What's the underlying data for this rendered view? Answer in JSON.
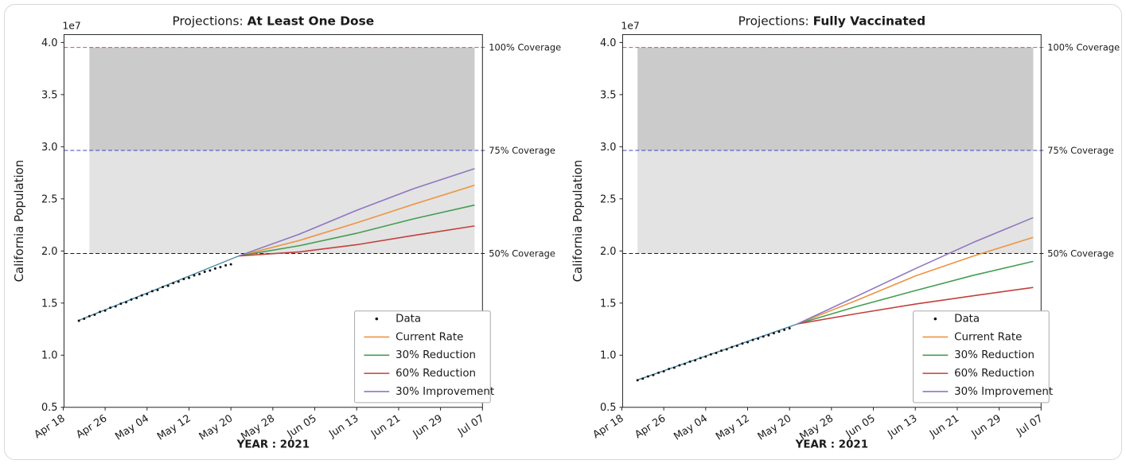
{
  "figure": {
    "description": "California vaccination projections, two-panel line chart"
  },
  "chart_data": [
    {
      "type": "line",
      "title_prefix": "Projections: ",
      "title_bold": "At Least One Dose",
      "ylabel": "California Population",
      "xlabel": "YEAR : 2021",
      "offset_label": "1e7",
      "x_tick_days": [
        0,
        8,
        16,
        24,
        32,
        40,
        48,
        56,
        64,
        72,
        80
      ],
      "x_tick_labels": [
        "Apr 18",
        "Apr 26",
        "May 04",
        "May 12",
        "May 20",
        "May 28",
        "Jun 05",
        "Jun 13",
        "Jun 21",
        "Jun 29",
        "Jul 07"
      ],
      "y_tick_labels": [
        "0.5",
        "1.0",
        "1.5",
        "2.0",
        "2.5",
        "3.0",
        "3.5",
        "4.0"
      ],
      "y_tick_values": [
        0.5,
        1.0,
        1.5,
        2.0,
        2.5,
        3.0,
        3.5,
        4.0
      ],
      "ylim": [
        0.5,
        4.076
      ],
      "xlim_days": [
        0,
        80
      ],
      "coverage_lines": [
        {
          "label": "100% Coverage",
          "value": 3.952,
          "color": "#e04b4b"
        },
        {
          "label": "75% Coverage",
          "value": 2.964,
          "color": "#4040c8"
        },
        {
          "label": "50%  Coverage",
          "value": 1.976,
          "color": "#1a1a1a"
        }
      ],
      "bands": [
        {
          "from": 2.964,
          "to": 3.952,
          "color": "#cbcbcb"
        },
        {
          "from": 1.976,
          "to": 2.964,
          "color": "#e3e3e3"
        }
      ],
      "band_day_range": [
        5.0,
        78.5
      ],
      "data_points": {
        "label": "Data",
        "color": "#111111",
        "start_day": 3,
        "step": 1,
        "values": [
          1.33,
          1.349,
          1.374,
          1.388,
          1.415,
          1.428,
          1.455,
          1.468,
          1.494,
          1.508,
          1.534,
          1.548,
          1.574,
          1.586,
          1.614,
          1.626,
          1.654,
          1.666,
          1.692,
          1.705,
          1.73,
          1.742,
          1.766,
          1.778,
          1.8,
          1.812,
          1.832,
          1.845,
          1.862,
          1.872
        ]
      },
      "fit_line": {
        "color": "#3d83a0",
        "points": [
          [
            3,
            1.335
          ],
          [
            18,
            1.637
          ],
          [
            33.5,
            1.952
          ]
        ]
      },
      "series": [
        {
          "name": "Current Rate",
          "color": "#ee9340",
          "points": [
            [
              33.5,
              1.952
            ],
            [
              45,
              2.1
            ],
            [
              56,
              2.27
            ],
            [
              67,
              2.45
            ],
            [
              78.5,
              2.63
            ]
          ]
        },
        {
          "name": "30% Reduction",
          "color": "#449e52",
          "points": [
            [
              33.5,
              1.952
            ],
            [
              45,
              2.05
            ],
            [
              56,
              2.17
            ],
            [
              67,
              2.31
            ],
            [
              78.5,
              2.44
            ]
          ]
        },
        {
          "name": "60% Reduction",
          "color": "#c4403c",
          "points": [
            [
              33.5,
              1.952
            ],
            [
              45,
              1.99
            ],
            [
              56,
              2.06
            ],
            [
              67,
              2.15
            ],
            [
              78.5,
              2.24
            ]
          ]
        },
        {
          "name": "30% Improvement",
          "color": "#8f76c0",
          "points": [
            [
              33.5,
              1.952
            ],
            [
              45,
              2.16
            ],
            [
              56,
              2.39
            ],
            [
              67,
              2.6
            ],
            [
              78.5,
              2.79
            ]
          ]
        }
      ],
      "legend": {
        "entries": [
          {
            "label": "Data",
            "type": "dot",
            "color": "#111111"
          },
          {
            "label": "Current Rate",
            "type": "line",
            "color": "#ee9340"
          },
          {
            "label": "30% Reduction",
            "type": "line",
            "color": "#449e52"
          },
          {
            "label": "60% Reduction",
            "type": "line",
            "color": "#c4403c"
          },
          {
            "label": "30% Improvement",
            "type": "line",
            "color": "#8f76c0"
          }
        ]
      }
    },
    {
      "type": "line",
      "title_prefix": "Projections: ",
      "title_bold": "Fully Vaccinated",
      "ylabel": "California Population",
      "xlabel": "YEAR : 2021",
      "offset_label": "1e7",
      "x_tick_days": [
        0,
        8,
        16,
        24,
        32,
        40,
        48,
        56,
        64,
        72,
        80
      ],
      "x_tick_labels": [
        "Apr 18",
        "Apr 26",
        "May 04",
        "May 12",
        "May 20",
        "May 28",
        "Jun 05",
        "Jun 13",
        "Jun 21",
        "Jun 29",
        "Jul 07"
      ],
      "y_tick_labels": [
        "0.5",
        "1.0",
        "1.5",
        "2.0",
        "2.5",
        "3.0",
        "3.5",
        "4.0"
      ],
      "y_tick_values": [
        0.5,
        1.0,
        1.5,
        2.0,
        2.5,
        3.0,
        3.5,
        4.0
      ],
      "ylim": [
        0.5,
        4.076
      ],
      "xlim_days": [
        0,
        80
      ],
      "coverage_lines": [
        {
          "label": "100% Coverage",
          "value": 3.952,
          "color": "#e04b4b"
        },
        {
          "label": "75% Coverage",
          "value": 2.964,
          "color": "#4040c8"
        },
        {
          "label": "50%  Coverage",
          "value": 1.976,
          "color": "#1a1a1a"
        }
      ],
      "bands": [
        {
          "from": 2.964,
          "to": 3.952,
          "color": "#cbcbcb"
        },
        {
          "from": 1.976,
          "to": 2.964,
          "color": "#e3e3e3"
        }
      ],
      "band_day_range": [
        3.0,
        78.5
      ],
      "data_points": {
        "label": "Data",
        "color": "#111111",
        "start_day": 3,
        "step": 1,
        "values": [
          0.76,
          0.775,
          0.796,
          0.81,
          0.832,
          0.845,
          0.868,
          0.88,
          0.903,
          0.916,
          0.938,
          0.951,
          0.973,
          0.986,
          1.008,
          1.021,
          1.043,
          1.056,
          1.078,
          1.09,
          1.112,
          1.124,
          1.146,
          1.158,
          1.179,
          1.191,
          1.211,
          1.226,
          1.243,
          1.258
        ]
      },
      "fit_line": {
        "color": "#3d83a0",
        "points": [
          [
            3,
            0.763
          ],
          [
            18,
            1.027
          ],
          [
            33.5,
            1.3
          ]
        ]
      },
      "series": [
        {
          "name": "Current Rate",
          "color": "#ee9340",
          "points": [
            [
              33.5,
              1.3
            ],
            [
              45,
              1.53
            ],
            [
              56,
              1.76
            ],
            [
              67,
              1.95
            ],
            [
              78.5,
              2.13
            ]
          ]
        },
        {
          "name": "30% Reduction",
          "color": "#449e52",
          "points": [
            [
              33.5,
              1.3
            ],
            [
              45,
              1.47
            ],
            [
              56,
              1.62
            ],
            [
              67,
              1.765
            ],
            [
              78.5,
              1.9
            ]
          ]
        },
        {
          "name": "60% Reduction",
          "color": "#c4403c",
          "points": [
            [
              33.5,
              1.3
            ],
            [
              45,
              1.4
            ],
            [
              56,
              1.49
            ],
            [
              67,
              1.57
            ],
            [
              78.5,
              1.65
            ]
          ]
        },
        {
          "name": "30% Improvement",
          "color": "#8f76c0",
          "points": [
            [
              33.5,
              1.3
            ],
            [
              45,
              1.57
            ],
            [
              56,
              1.83
            ],
            [
              67,
              2.08
            ],
            [
              78.5,
              2.32
            ]
          ]
        }
      ],
      "legend": {
        "entries": [
          {
            "label": "Data",
            "type": "dot",
            "color": "#111111"
          },
          {
            "label": "Current Rate",
            "type": "line",
            "color": "#ee9340"
          },
          {
            "label": "30% Reduction",
            "type": "line",
            "color": "#449e52"
          },
          {
            "label": "60% Reduction",
            "type": "line",
            "color": "#c4403c"
          },
          {
            "label": "30% Improvement",
            "type": "line",
            "color": "#8f76c0"
          }
        ]
      }
    }
  ]
}
